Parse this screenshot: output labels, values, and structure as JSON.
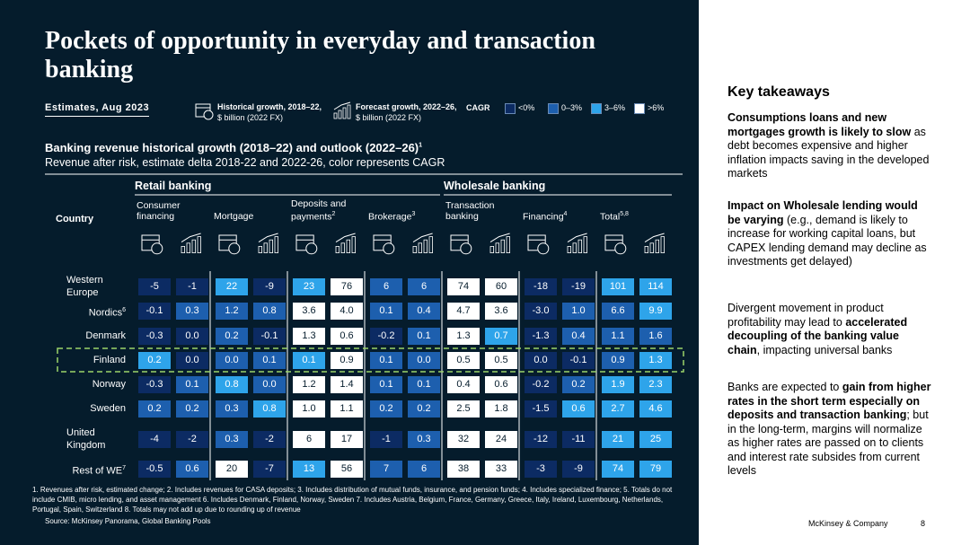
{
  "header": {
    "title": "Pockets of opportunity in everyday and transaction banking",
    "estimates": "Estimates, Aug 2023"
  },
  "legend": {
    "historical": "Historical growth, 2018–22,",
    "historical_unit": "$ billion (2022 FX)",
    "forecast": "Forecast growth, 2022–26,",
    "forecast_unit": "$ billion (2022 FX)",
    "cagr_label": "CAGR",
    "scale": [
      {
        "label": "<0%",
        "color": "#0c2b63"
      },
      {
        "label": "0–3%",
        "color": "#1d5fae"
      },
      {
        "label": "3–6%",
        "color": "#2ea4ea"
      },
      {
        "label": ">6%",
        "color": "#ffffff"
      }
    ]
  },
  "chart_title": {
    "text": "Banking revenue historical growth (2018–22) and outlook (2022–26)",
    "sup": "1",
    "subtitle": "Revenue after risk, estimate delta 2018-22 and 2022-26, color represents CAGR"
  },
  "table": {
    "country_header": "Country",
    "segments": [
      {
        "label": "Retail banking",
        "from": 0,
        "to": 3
      },
      {
        "label": "Wholesale banking",
        "from": 4,
        "to": 6
      }
    ],
    "columns": [
      {
        "label": "Consumer financing"
      },
      {
        "label": "Mortgage"
      },
      {
        "label": "Deposits and payments",
        "sup": "2"
      },
      {
        "label": "Brokerage",
        "sup": "3"
      },
      {
        "label": "Transaction banking"
      },
      {
        "label": "Financing",
        "sup": "4"
      },
      {
        "label": "Total",
        "sup": "5,8"
      }
    ],
    "rows": [
      {
        "label": "Western Europe",
        "values": [
          "-5",
          "-1",
          "22",
          "-9",
          "23",
          "76",
          "6",
          "6",
          "74",
          "60",
          "-18",
          "-19",
          "101",
          "114"
        ],
        "cagr": [
          0,
          0,
          2,
          0,
          2,
          3,
          1,
          1,
          3,
          3,
          0,
          0,
          2,
          2
        ]
      },
      {
        "label": "Nordics",
        "sup": "6",
        "values": [
          "-0.1",
          "0.3",
          "1.2",
          "0.8",
          "3.6",
          "4.0",
          "0.1",
          "0.4",
          "4.7",
          "3.6",
          "-3.0",
          "1.0",
          "6.6",
          "9.9"
        ],
        "cagr": [
          0,
          1,
          1,
          1,
          3,
          3,
          1,
          1,
          3,
          3,
          0,
          1,
          1,
          2
        ]
      },
      {
        "label": "Denmark",
        "values": [
          "-0.3",
          "0.0",
          "0.2",
          "-0.1",
          "1.3",
          "0.6",
          "-0.2",
          "0.1",
          "1.3",
          "0.7",
          "-1.3",
          "0.4",
          "1.1",
          "1.6"
        ],
        "cagr": [
          0,
          0,
          1,
          0,
          3,
          3,
          0,
          1,
          3,
          2,
          0,
          1,
          1,
          1
        ]
      },
      {
        "label": "Finland",
        "values": [
          "0.2",
          "0.0",
          "0.0",
          "0.1",
          "0.1",
          "0.9",
          "0.1",
          "0.0",
          "0.5",
          "0.5",
          "0.0",
          "-0.1",
          "0.9",
          "1.3"
        ],
        "cagr": [
          2,
          0,
          1,
          1,
          2,
          3,
          1,
          1,
          3,
          3,
          0,
          0,
          1,
          2
        ]
      },
      {
        "label": "Norway",
        "values": [
          "-0.3",
          "0.1",
          "0.8",
          "0.0",
          "1.2",
          "1.4",
          "0.1",
          "0.1",
          "0.4",
          "0.6",
          "-0.2",
          "0.2",
          "1.9",
          "2.3"
        ],
        "cagr": [
          0,
          1,
          2,
          1,
          3,
          3,
          1,
          1,
          3,
          3,
          0,
          1,
          2,
          2
        ]
      },
      {
        "label": "Sweden",
        "values": [
          "0.2",
          "0.2",
          "0.3",
          "0.8",
          "1.0",
          "1.1",
          "0.2",
          "0.2",
          "2.5",
          "1.8",
          "-1.5",
          "0.6",
          "2.7",
          "4.6"
        ],
        "cagr": [
          1,
          1,
          1,
          2,
          3,
          3,
          1,
          1,
          3,
          3,
          0,
          2,
          2,
          2
        ]
      },
      {
        "label": "United Kingdom",
        "values": [
          "-4",
          "-2",
          "0.3",
          "-2",
          "6",
          "17",
          "-1",
          "0.3",
          "32",
          "24",
          "-12",
          "-11",
          "21",
          "25"
        ],
        "cagr": [
          0,
          0,
          1,
          0,
          3,
          3,
          0,
          1,
          3,
          3,
          0,
          0,
          2,
          2
        ]
      },
      {
        "label": "Rest of WE",
        "sup": "7",
        "values": [
          "-0.5",
          "0.6",
          "20",
          "-7",
          "13",
          "56",
          "7",
          "6",
          "38",
          "33",
          "-3",
          "-9",
          "74",
          "79"
        ],
        "cagr": [
          0,
          1,
          3,
          0,
          2,
          3,
          1,
          1,
          3,
          3,
          0,
          0,
          2,
          2
        ]
      }
    ]
  },
  "footnotes": [
    "1.   Revenues after risk, estimated change; 2. Includes revenues for CASA deposits; 3. Includes distribution of mutual funds, insurance, and pension funds; 4. Includes specialized finance; 5. Totals do not include CMIB, micro lending, and asset management 6. Includes Denmark, Finland, Norway, Sweden 7. Includes Austria, Belgium, France, Germany, Greece, Italy, Ireland, Luxembourg, Netherlands, Portugal, Spain, Switzerland 8. Totals may not add up due to rounding up of revenue"
  ],
  "source": "Source: McKinsey Panorama, Global Banking Pools",
  "takeaways": {
    "title": "Key takeaways",
    "paragraphs": [
      [
        {
          "text": "Consumptions loans and new mortgages growth is likely to slow",
          "bold": true
        },
        {
          "text": " as debt becomes expensive and higher inflation impacts saving in the developed markets",
          "bold": false
        }
      ],
      [
        {
          "text": "Impact on Wholesale lending would be varying",
          "bold": true
        },
        {
          "text": " (e.g., demand is likely to increase for working capital loans, but CAPEX lending demand may decline as investments get delayed)",
          "bold": false
        }
      ],
      [
        {
          "text": "Divergent movement in product profitability may lead to ",
          "bold": false
        },
        {
          "text": "accelerated decoupling of the banking value chain",
          "bold": true
        },
        {
          "text": ", impacting universal banks",
          "bold": false
        }
      ],
      [
        {
          "text": "Banks are expected to ",
          "bold": false
        },
        {
          "text": "gain from higher rates in the short term especially on deposits and transaction banking",
          "bold": true
        },
        {
          "text": "; but in the long-term, margins will normalize as higher rates are passed on to clients and interest rate subsides from current levels",
          "bold": false
        }
      ]
    ]
  },
  "footer": {
    "company": "McKinsey & Company",
    "page": "8"
  }
}
